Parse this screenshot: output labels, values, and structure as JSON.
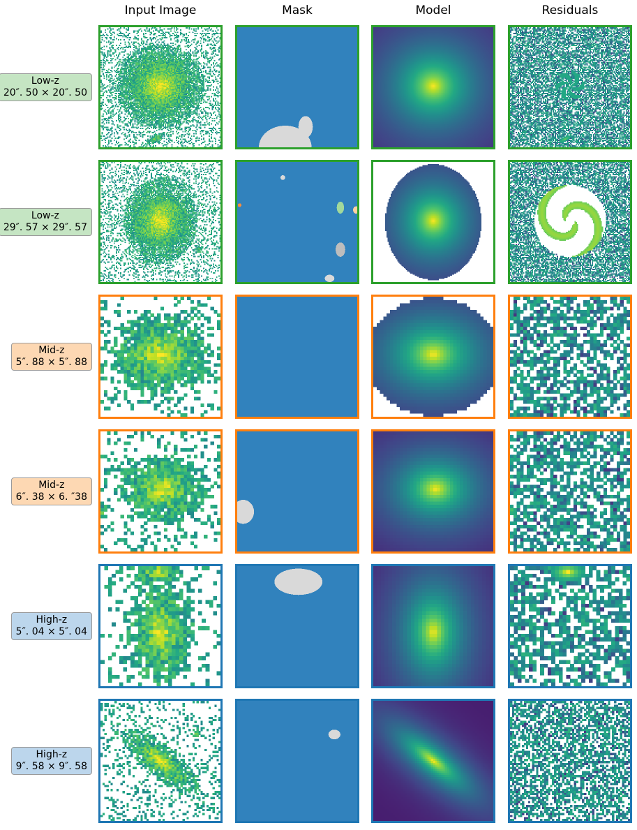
{
  "columns": [
    "Input Image",
    "Mask",
    "Model",
    "Residuals"
  ],
  "rows": [
    {
      "name": "Low-z",
      "size": "20″. 50 × 20″. 50",
      "badge_color": "#c5e5c3",
      "frame_color": "#2ca02c"
    },
    {
      "name": "Low-z",
      "size": "29″. 57 × 29″. 57",
      "badge_color": "#c5e5c3",
      "frame_color": "#2ca02c"
    },
    {
      "name": "Mid-z",
      "size": "5″. 88 × 5″. 88",
      "badge_color": "#fdd8b3",
      "frame_color": "#ff7f0e"
    },
    {
      "name": "Mid-z",
      "size": "6″. 38 × 6. ″38",
      "badge_color": "#fdd8b3",
      "frame_color": "#ff7f0e"
    },
    {
      "name": "High-z",
      "size": "5″. 04 × 5″. 04",
      "badge_color": "#bcd6ec",
      "frame_color": "#1f77b4"
    },
    {
      "name": "High-z",
      "size": "9″. 58 × 9″. 58",
      "badge_color": "#bcd6ec",
      "frame_color": "#1f77b4"
    }
  ],
  "colors": {
    "mask_background": "#3182bd",
    "mask_region": "#d9d9d9",
    "colormap": "viridis"
  }
}
